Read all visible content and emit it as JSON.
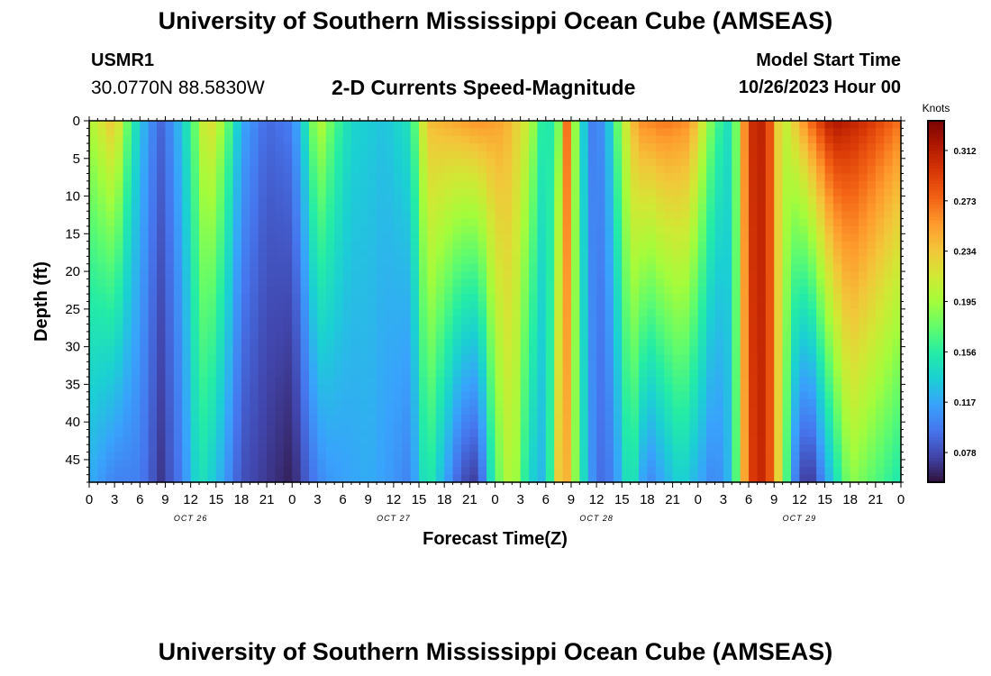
{
  "page": {
    "title": "University of Southern Mississippi Ocean Cube (AMSEAS)",
    "title_repeat": "University of Southern Mississippi Ocean Cube (AMSEAS)"
  },
  "station": {
    "id": "USMR1",
    "coords": "30.0770N  88.5830W"
  },
  "model": {
    "start_label": "Model Start Time",
    "start_value": "10/26/2023 Hour 00"
  },
  "colors": {
    "scale": [
      "#30123b",
      "#4145ab",
      "#4675ed",
      "#39a2fc",
      "#1bcfd4",
      "#24eca6",
      "#61fc6c",
      "#a4fc3b",
      "#d1e834",
      "#f3c63a",
      "#fe9b2d",
      "#f36315",
      "#d93806",
      "#b11901",
      "#7a0403"
    ]
  },
  "chart_data": {
    "type": "heatmap",
    "title": "2-D Currents Speed-Magnitude",
    "xlabel": "Forecast Time(Z)",
    "ylabel": "Depth (ft)",
    "x_unit": "hours from 10/26/2023 00Z",
    "xlim": [
      0,
      96
    ],
    "ylim": [
      0,
      48
    ],
    "x_ticks": [
      0,
      3,
      6,
      9,
      12,
      15,
      18,
      21,
      24,
      27,
      30,
      33,
      36,
      39,
      42,
      45,
      48,
      51,
      54,
      57,
      60,
      63,
      66,
      69,
      72,
      75,
      78,
      81,
      84,
      87,
      90,
      93,
      96
    ],
    "x_tick_labels": [
      "0",
      "3",
      "6",
      "9",
      "12",
      "15",
      "18",
      "21",
      "0",
      "3",
      "6",
      "9",
      "12",
      "15",
      "18",
      "21",
      "0",
      "3",
      "6",
      "9",
      "12",
      "15",
      "18",
      "21",
      "0",
      "3",
      "6",
      "9",
      "12",
      "15",
      "18",
      "21",
      "0"
    ],
    "day_labels": [
      {
        "hour": 12,
        "label": "OCT 26"
      },
      {
        "hour": 36,
        "label": "OCT 27"
      },
      {
        "hour": 60,
        "label": "OCT 28"
      },
      {
        "hour": 84,
        "label": "OCT 29"
      }
    ],
    "y_ticks": [
      0,
      5,
      10,
      15,
      20,
      25,
      30,
      35,
      40,
      45
    ],
    "y_tick_labels": [
      "0",
      "5",
      "10",
      "15",
      "20",
      "25",
      "30",
      "35",
      "40",
      "45"
    ],
    "colorbar": {
      "label": "Knots",
      "min": 0.055,
      "max": 0.335,
      "ticks": [
        0.078,
        0.117,
        0.156,
        0.195,
        0.234,
        0.273,
        0.312
      ],
      "tick_labels": [
        "0.078",
        "0.117",
        "0.156",
        "0.195",
        "0.234",
        "0.273",
        "0.312"
      ]
    },
    "surface_speed_knots": [
      {
        "hour": 0,
        "value": 0.2
      },
      {
        "hour": 3,
        "value": 0.24
      },
      {
        "hour": 5,
        "value": 0.16
      },
      {
        "hour": 7,
        "value": 0.11
      },
      {
        "hour": 8.5,
        "value": 0.09
      },
      {
        "hour": 10,
        "value": 0.11
      },
      {
        "hour": 12,
        "value": 0.16
      },
      {
        "hour": 14,
        "value": 0.23
      },
      {
        "hour": 16,
        "value": 0.19
      },
      {
        "hour": 18,
        "value": 0.12
      },
      {
        "hour": 21,
        "value": 0.09
      },
      {
        "hour": 24,
        "value": 0.1
      },
      {
        "hour": 26,
        "value": 0.16
      },
      {
        "hour": 27,
        "value": 0.21
      },
      {
        "hour": 29,
        "value": 0.17
      },
      {
        "hour": 31,
        "value": 0.14
      },
      {
        "hour": 35,
        "value": 0.13
      },
      {
        "hour": 38,
        "value": 0.15
      },
      {
        "hour": 40,
        "value": 0.24
      },
      {
        "hour": 43,
        "value": 0.25
      },
      {
        "hour": 46,
        "value": 0.26
      },
      {
        "hour": 49,
        "value": 0.25
      },
      {
        "hour": 52,
        "value": 0.21
      },
      {
        "hour": 54,
        "value": 0.14
      },
      {
        "hour": 55.5,
        "value": 0.18
      },
      {
        "hour": 56.5,
        "value": 0.27
      },
      {
        "hour": 58,
        "value": 0.15
      },
      {
        "hour": 59.5,
        "value": 0.1
      },
      {
        "hour": 61,
        "value": 0.11
      },
      {
        "hour": 63,
        "value": 0.2
      },
      {
        "hour": 65,
        "value": 0.26
      },
      {
        "hour": 68,
        "value": 0.27
      },
      {
        "hour": 71,
        "value": 0.26
      },
      {
        "hour": 74,
        "value": 0.17
      },
      {
        "hour": 76,
        "value": 0.14
      },
      {
        "hour": 78,
        "value": 0.3
      },
      {
        "hour": 80,
        "value": 0.31
      },
      {
        "hour": 82,
        "value": 0.2
      },
      {
        "hour": 85,
        "value": 0.27
      },
      {
        "hour": 88,
        "value": 0.32
      },
      {
        "hour": 92,
        "value": 0.3
      },
      {
        "hour": 96,
        "value": 0.27
      }
    ],
    "bottom_speed_knots": [
      {
        "hour": 0,
        "value": 0.12
      },
      {
        "hour": 3,
        "value": 0.1
      },
      {
        "hour": 6,
        "value": 0.1
      },
      {
        "hour": 8.5,
        "value": 0.07
      },
      {
        "hour": 11,
        "value": 0.1
      },
      {
        "hour": 13,
        "value": 0.15
      },
      {
        "hour": 15,
        "value": 0.13
      },
      {
        "hour": 18,
        "value": 0.08
      },
      {
        "hour": 21,
        "value": 0.07
      },
      {
        "hour": 24,
        "value": 0.06
      },
      {
        "hour": 26,
        "value": 0.09
      },
      {
        "hour": 28,
        "value": 0.11
      },
      {
        "hour": 33,
        "value": 0.12
      },
      {
        "hour": 36,
        "value": 0.11
      },
      {
        "hour": 38,
        "value": 0.1
      },
      {
        "hour": 40,
        "value": 0.16
      },
      {
        "hour": 42,
        "value": 0.12
      },
      {
        "hour": 44,
        "value": 0.08
      },
      {
        "hour": 46,
        "value": 0.07
      },
      {
        "hour": 48,
        "value": 0.17
      },
      {
        "hour": 50,
        "value": 0.21
      },
      {
        "hour": 52,
        "value": 0.14
      },
      {
        "hour": 54,
        "value": 0.12
      },
      {
        "hour": 56,
        "value": 0.27
      },
      {
        "hour": 58,
        "value": 0.16
      },
      {
        "hour": 60,
        "value": 0.09
      },
      {
        "hour": 62,
        "value": 0.1
      },
      {
        "hour": 64,
        "value": 0.16
      },
      {
        "hour": 66,
        "value": 0.1
      },
      {
        "hour": 68,
        "value": 0.12
      },
      {
        "hour": 70,
        "value": 0.14
      },
      {
        "hour": 72,
        "value": 0.12
      },
      {
        "hour": 74,
        "value": 0.1
      },
      {
        "hour": 76,
        "value": 0.13
      },
      {
        "hour": 78,
        "value": 0.29
      },
      {
        "hour": 80,
        "value": 0.31
      },
      {
        "hour": 82,
        "value": 0.2
      },
      {
        "hour": 83.5,
        "value": 0.1
      },
      {
        "hour": 85,
        "value": 0.06
      },
      {
        "hour": 87,
        "value": 0.11
      },
      {
        "hour": 90,
        "value": 0.19
      },
      {
        "hour": 93,
        "value": 0.17
      },
      {
        "hour": 96,
        "value": 0.15
      }
    ]
  }
}
